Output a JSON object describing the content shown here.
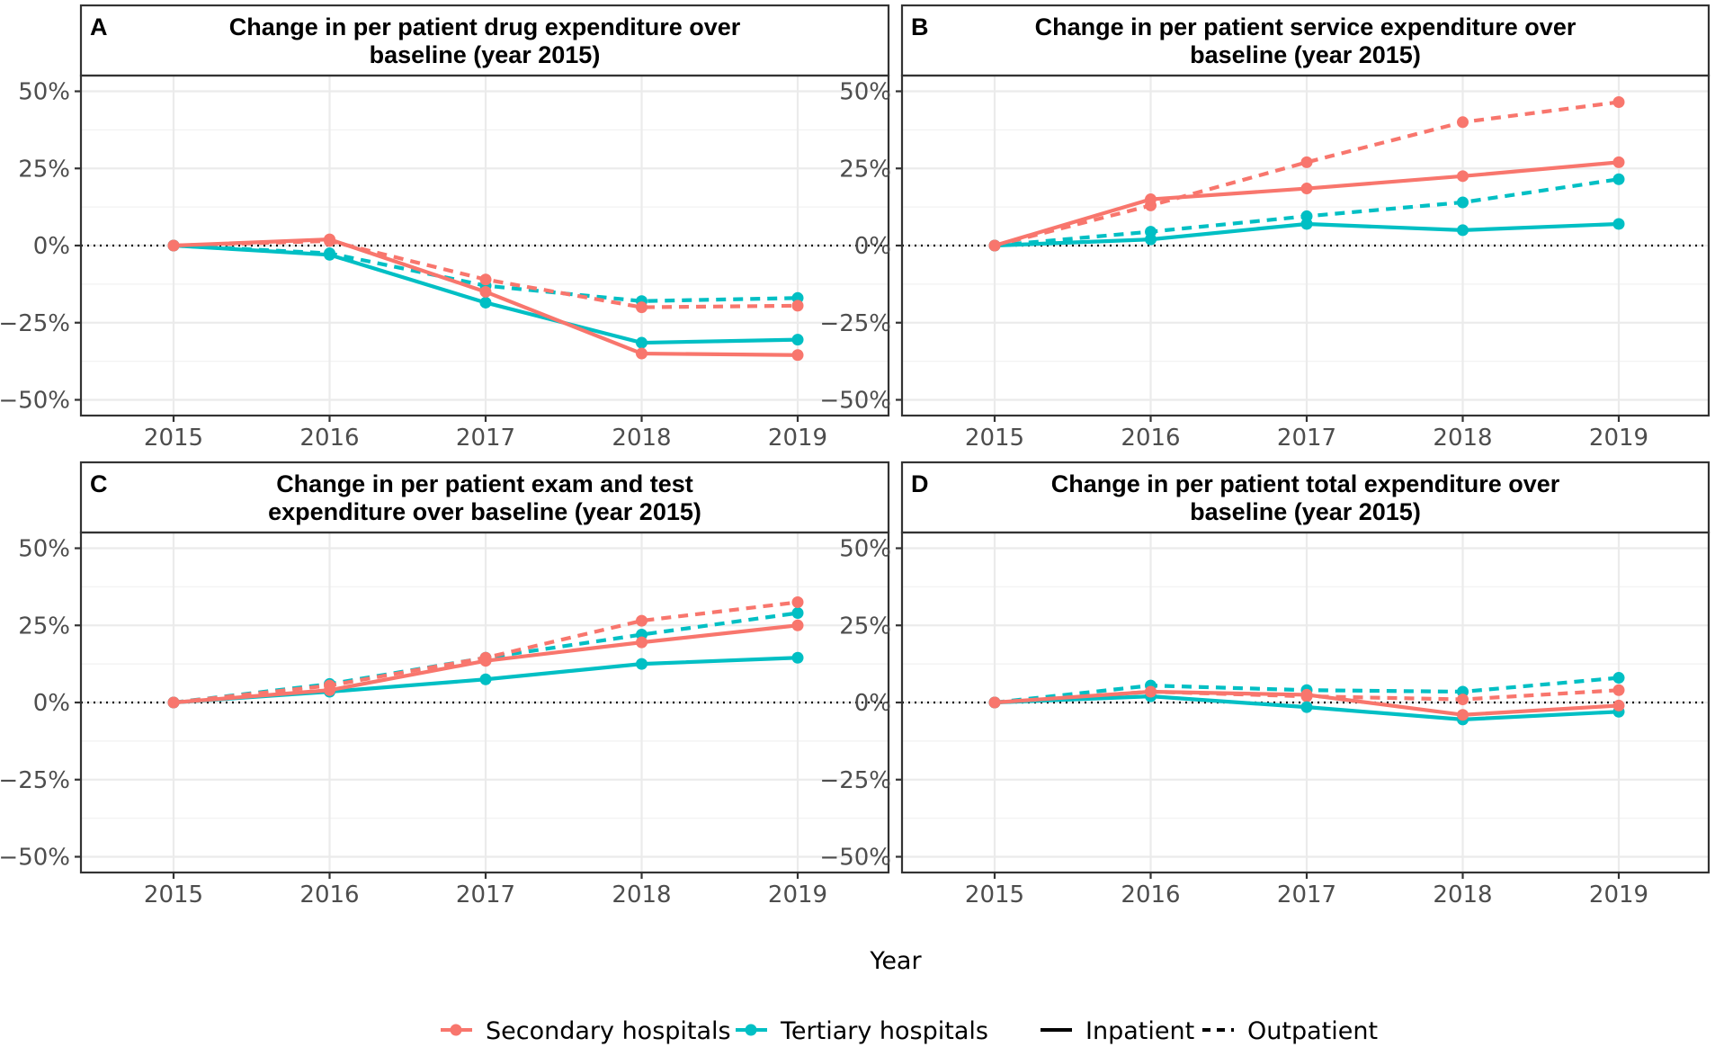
{
  "chart_data": [
    {
      "type": "line",
      "panel": "A",
      "title_lines": [
        "Change in per patient drug expenditure over",
        "baseline (year 2015)"
      ],
      "x": [
        "2015",
        "2016",
        "2017",
        "2018",
        "2019"
      ],
      "xlabel": "Year",
      "ylabel": "",
      "ylim": [
        -0.57,
        0.57
      ],
      "yticks": [
        -0.5,
        -0.25,
        0,
        0.25,
        0.5
      ],
      "ytick_labels": [
        "−50%",
        "−25%",
        "0%",
        "25%",
        "50%"
      ],
      "reference_line": 0,
      "series": [
        {
          "name": "Secondary hospitals",
          "setting": "Inpatient",
          "values": [
            0,
            0.02,
            -0.15,
            -0.35,
            -0.355
          ]
        },
        {
          "name": "Secondary hospitals",
          "setting": "Outpatient",
          "values": [
            0,
            0.015,
            -0.11,
            -0.2,
            -0.195
          ]
        },
        {
          "name": "Tertiary hospitals",
          "setting": "Inpatient",
          "values": [
            0,
            -0.03,
            -0.185,
            -0.315,
            -0.305
          ]
        },
        {
          "name": "Tertiary hospitals",
          "setting": "Outpatient",
          "values": [
            0,
            -0.025,
            -0.13,
            -0.18,
            -0.17
          ]
        }
      ]
    },
    {
      "type": "line",
      "panel": "B",
      "title_lines": [
        "Change in per patient service expenditure over",
        "baseline (year 2015)"
      ],
      "x": [
        "2015",
        "2016",
        "2017",
        "2018",
        "2019"
      ],
      "xlabel": "Year",
      "ylabel": "",
      "ylim": [
        -0.57,
        0.57
      ],
      "yticks": [
        -0.5,
        -0.25,
        0,
        0.25,
        0.5
      ],
      "ytick_labels": [
        "−50%",
        "−25%",
        "0%",
        "25%",
        "50%"
      ],
      "reference_line": 0,
      "series": [
        {
          "name": "Secondary hospitals",
          "setting": "Inpatient",
          "values": [
            0,
            0.15,
            0.185,
            0.225,
            0.27
          ]
        },
        {
          "name": "Secondary hospitals",
          "setting": "Outpatient",
          "values": [
            0,
            0.13,
            0.27,
            0.4,
            0.465
          ]
        },
        {
          "name": "Tertiary hospitals",
          "setting": "Inpatient",
          "values": [
            0,
            0.02,
            0.07,
            0.05,
            0.07
          ]
        },
        {
          "name": "Tertiary hospitals",
          "setting": "Outpatient",
          "values": [
            0,
            0.045,
            0.095,
            0.14,
            0.215
          ]
        }
      ]
    },
    {
      "type": "line",
      "panel": "C",
      "title_lines": [
        "Change in per patient exam and test",
        "expenditure over baseline (year 2015)"
      ],
      "x": [
        "2015",
        "2016",
        "2017",
        "2018",
        "2019"
      ],
      "xlabel": "Year",
      "ylabel": "",
      "ylim": [
        -0.57,
        0.57
      ],
      "yticks": [
        -0.5,
        -0.25,
        0,
        0.25,
        0.5
      ],
      "ytick_labels": [
        "−50%",
        "−25%",
        "0%",
        "25%",
        "50%"
      ],
      "reference_line": 0,
      "series": [
        {
          "name": "Secondary hospitals",
          "setting": "Inpatient",
          "values": [
            0,
            0.04,
            0.135,
            0.195,
            0.25
          ]
        },
        {
          "name": "Secondary hospitals",
          "setting": "Outpatient",
          "values": [
            0,
            0.055,
            0.145,
            0.265,
            0.325
          ]
        },
        {
          "name": "Tertiary hospitals",
          "setting": "Inpatient",
          "values": [
            0,
            0.035,
            0.075,
            0.125,
            0.145
          ]
        },
        {
          "name": "Tertiary hospitals",
          "setting": "Outpatient",
          "values": [
            0,
            0.06,
            0.145,
            0.22,
            0.29
          ]
        }
      ]
    },
    {
      "type": "line",
      "panel": "D",
      "title_lines": [
        "Change in per patient total expenditure over",
        "baseline (year 2015)"
      ],
      "x": [
        "2015",
        "2016",
        "2017",
        "2018",
        "2019"
      ],
      "xlabel": "Year",
      "ylabel": "",
      "ylim": [
        -0.57,
        0.57
      ],
      "yticks": [
        -0.5,
        -0.25,
        0,
        0.25,
        0.5
      ],
      "ytick_labels": [
        "−50%",
        "−25%",
        "0%",
        "25%",
        "50%"
      ],
      "reference_line": 0,
      "series": [
        {
          "name": "Secondary hospitals",
          "setting": "Inpatient",
          "values": [
            0,
            0.035,
            0.025,
            -0.04,
            -0.01
          ]
        },
        {
          "name": "Secondary hospitals",
          "setting": "Outpatient",
          "values": [
            0,
            0.035,
            0.02,
            0.01,
            0.04
          ]
        },
        {
          "name": "Tertiary hospitals",
          "setting": "Inpatient",
          "values": [
            0,
            0.02,
            -0.015,
            -0.055,
            -0.03
          ]
        },
        {
          "name": "Tertiary hospitals",
          "setting": "Outpatient",
          "values": [
            0,
            0.055,
            0.04,
            0.035,
            0.08
          ]
        }
      ]
    }
  ],
  "figure": {
    "xlabel": "Year",
    "legend": {
      "position": "bottom",
      "colour_entries": [
        {
          "label": "Secondary hospitals",
          "color": "#F8766D"
        },
        {
          "label": "Tertiary hospitals",
          "color": "#00BFC4"
        }
      ],
      "linetype_entries": [
        {
          "label": "Inpatient",
          "dash": "solid"
        },
        {
          "label": "Outpatient",
          "dash": "dashed"
        }
      ]
    }
  },
  "colors": {
    "Secondary hospitals": "#F8766D",
    "Tertiary hospitals": "#00BFC4"
  }
}
